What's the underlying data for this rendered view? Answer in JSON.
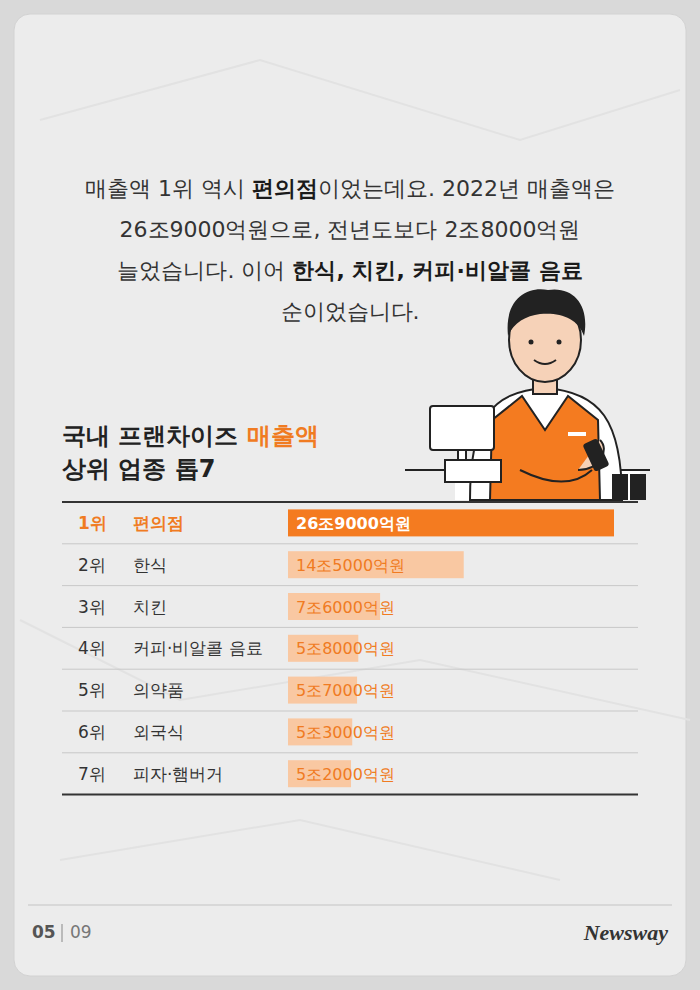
{
  "intro": {
    "lines": [
      [
        {
          "text": "매출액 1위 역시 ",
          "emphasis": false
        },
        {
          "text": "편의점",
          "emphasis": true
        },
        {
          "text": "이었는데요. 2022년 매출액은",
          "emphasis": false
        }
      ],
      [
        {
          "text": "26조9000억원으로, 전년도보다 2조8000억원",
          "emphasis": false
        }
      ],
      [
        {
          "text": "늘었습니다. 이어 ",
          "emphasis": false
        },
        {
          "text": "한식, 치킨, 커피·비알콜 음료",
          "emphasis": true
        }
      ],
      [
        {
          "text": "순이었습니다.",
          "emphasis": false
        }
      ]
    ]
  },
  "chart_data": {
    "type": "bar",
    "orientation": "horizontal",
    "title": [
      [
        {
          "text": "국내 프랜차이즈 ",
          "color": "#222222"
        },
        {
          "text": "매출액",
          "color": "#f07b22"
        }
      ],
      [
        {
          "text": "상위 업종 톱7",
          "color": "#222222"
        }
      ]
    ],
    "ranks": [
      "1위",
      "2위",
      "3위",
      "4위",
      "5위",
      "6위",
      "7위"
    ],
    "categories": [
      "편의점",
      "한식",
      "치킨",
      "커피·비알콜 음료",
      "의약품",
      "외국식",
      "피자·햄버거"
    ],
    "values": [
      269000,
      145000,
      76000,
      58000,
      57000,
      53000,
      52000
    ],
    "value_labels": [
      "26조9000억원",
      "14조5000억원",
      "7조6000억원",
      "5조8000억원",
      "5조7000억원",
      "5조3000억원",
      "5조2000억원"
    ],
    "colors": [
      "#f47b20",
      "#f9c8a2",
      "#f9c8a2",
      "#f9c8a2",
      "#f9c8a2",
      "#f9c8a2",
      "#f9c8a2"
    ],
    "xlim": [
      0,
      269000
    ],
    "tick_labels": false,
    "data_labels": true
  },
  "footer": {
    "page": "05",
    "total": "09",
    "brand": "Newsway"
  }
}
